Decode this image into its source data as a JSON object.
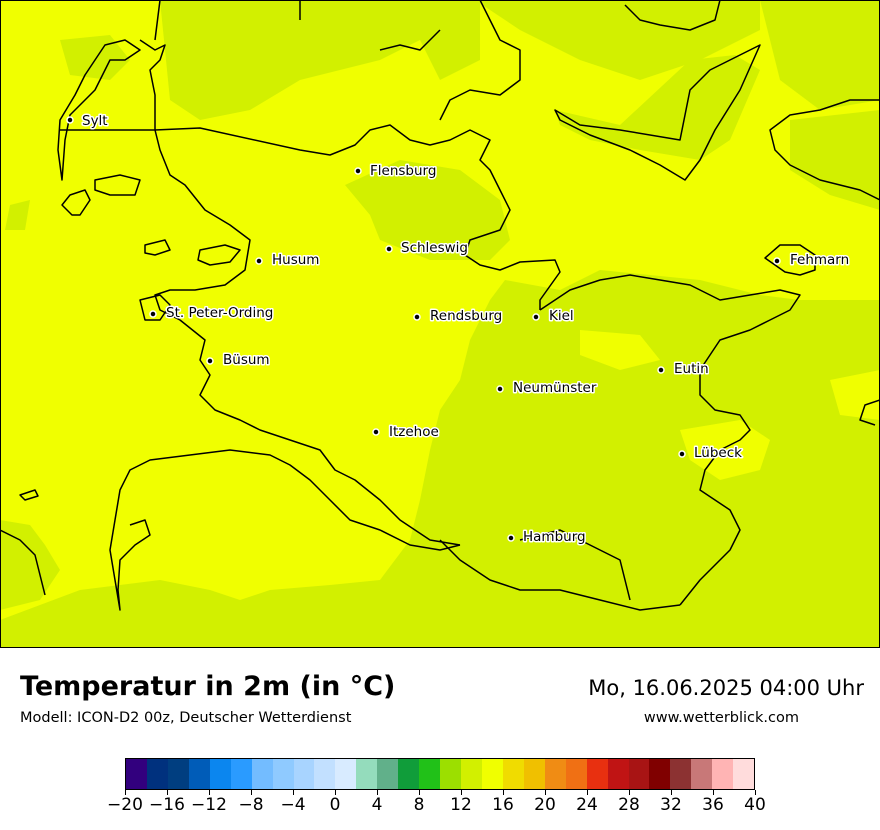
{
  "header": {
    "title": "Temperatur in 2m (in °C)",
    "subtitle": "Modell: ICON-D2 00z, Deutscher Wetterdienst",
    "datetime": "Mo, 16.06.2025 04:00 Uhr",
    "website": "www.wetterblick.com"
  },
  "map": {
    "region": "Schleswig-Holstein",
    "dominant_colors": {
      "land_warm": "#f0ff00",
      "land_cool": "#d2f000",
      "coastline": "#000000"
    },
    "cities": [
      {
        "name": "Sylt"
      },
      {
        "name": "Flensburg"
      },
      {
        "name": "Schleswig"
      },
      {
        "name": "Husum"
      },
      {
        "name": "Fehmarn"
      },
      {
        "name": "St. Peter-Ording"
      },
      {
        "name": "Rendsburg"
      },
      {
        "name": "Kiel"
      },
      {
        "name": "Büsum"
      },
      {
        "name": "Eutin"
      },
      {
        "name": "Neumünster"
      },
      {
        "name": "Itzehoe"
      },
      {
        "name": "Lübeck"
      },
      {
        "name": "Hamburg"
      }
    ]
  },
  "legend": {
    "colors": [
      "#32007e",
      "#00317e",
      "#003e80",
      "#005cb8",
      "#0b86ef",
      "#2a9bff",
      "#73bcff",
      "#8fcaff",
      "#a8d4ff",
      "#c2e0ff",
      "#d8ebff",
      "#94dcbc",
      "#61b08a",
      "#109d3a",
      "#21c118",
      "#9cdf00",
      "#d2f000",
      "#f0ff00",
      "#f0dc00",
      "#f0c000",
      "#f08c14",
      "#f07014",
      "#e83010",
      "#c01414",
      "#a81414",
      "#800000",
      "#8c3232",
      "#c87878",
      "#ffb4b4",
      "#ffdcdc"
    ],
    "tick_values": [
      "−20",
      "−16",
      "−12",
      "−8",
      "−4",
      "0",
      "4",
      "8",
      "12",
      "16",
      "20",
      "24",
      "28",
      "32",
      "36",
      "40"
    ]
  }
}
